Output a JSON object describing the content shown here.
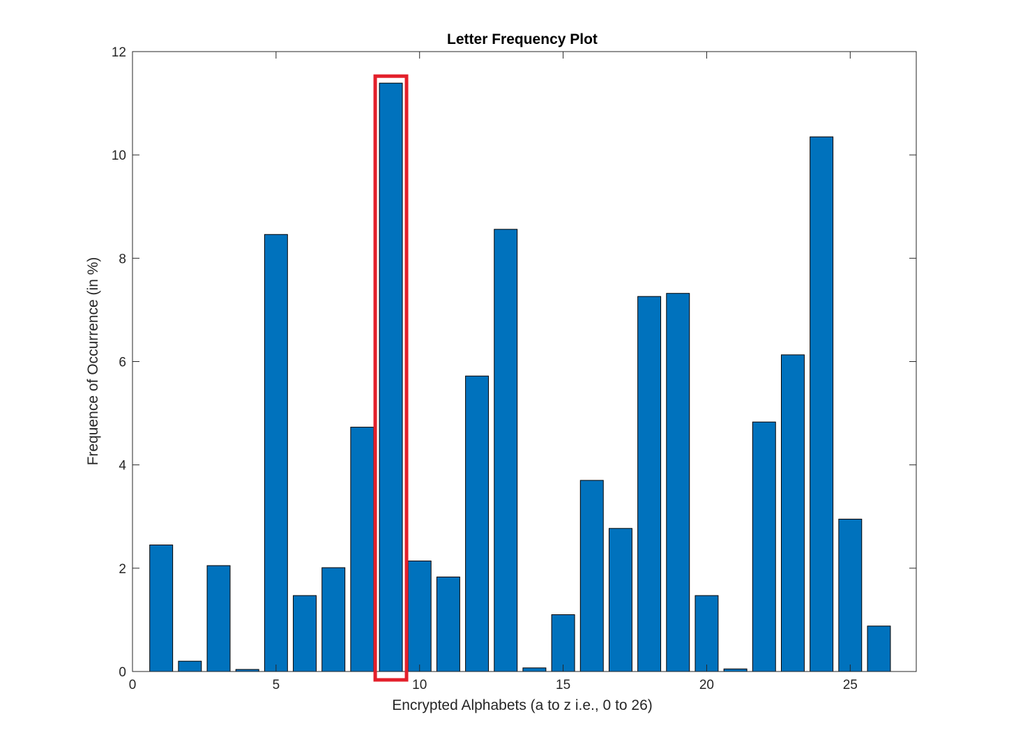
{
  "chart_data": {
    "type": "bar",
    "title": "Letter Frequency Plot",
    "xlabel": "Encrypted Alphabets (a to z i.e., 0 to 26)",
    "ylabel": "Frequence of Occurrence (in %)",
    "x": [
      1,
      2,
      3,
      4,
      5,
      6,
      7,
      8,
      9,
      10,
      11,
      12,
      13,
      14,
      15,
      16,
      17,
      18,
      19,
      20,
      21,
      22,
      23,
      24,
      25,
      26
    ],
    "values": [
      2.45,
      0.2,
      2.05,
      0.04,
      8.46,
      1.47,
      2.01,
      4.73,
      11.39,
      2.14,
      1.83,
      5.72,
      8.56,
      0.07,
      1.1,
      3.7,
      2.77,
      7.26,
      7.32,
      1.47,
      0.05,
      4.83,
      6.13,
      10.35,
      2.95,
      0.88
    ],
    "xlim": [
      0,
      27.3
    ],
    "ylim": [
      0,
      12
    ],
    "xticks": [
      0,
      5,
      10,
      15,
      20,
      25
    ],
    "yticks": [
      0,
      2,
      4,
      6,
      8,
      10,
      12
    ],
    "bar_color": "#0072BD",
    "highlight": {
      "x": 9,
      "color": "#E3202B"
    },
    "grid": false,
    "legend": "none"
  }
}
